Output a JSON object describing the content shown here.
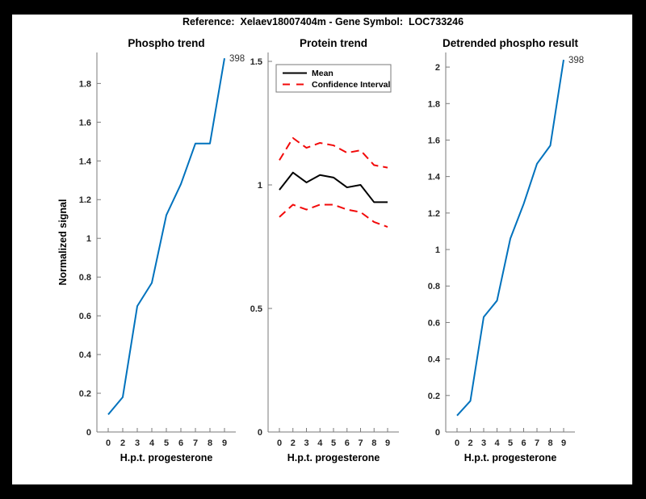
{
  "figure": {
    "title": "Reference:  Xelaev18007404m - Gene Symbol:  LOC733246",
    "background": "#000000",
    "canvas_color": "#ffffff"
  },
  "colors": {
    "line_blue": "#0072BD",
    "ci_red": "#f20a0a",
    "mean_black": "#000000",
    "axis_gray": "#7a7a7a",
    "tick_text": "#262626",
    "label_text": "#000000",
    "end_label_text": "#333333"
  },
  "chart_data": [
    {
      "type": "line",
      "title": "Phospho trend",
      "xlabel": "H.p.t. progesterone",
      "ylabel": "Normalized signal",
      "x_tick_labels": [
        "0",
        "2",
        "3",
        "4",
        "5",
        "6",
        "7",
        "8",
        "9"
      ],
      "y_ticks": [
        0,
        0.2,
        0.4,
        0.6,
        0.8,
        1,
        1.2,
        1.4,
        1.6,
        1.8
      ],
      "ylim": [
        0,
        1.96
      ],
      "grid": false,
      "legend": null,
      "series": [
        {
          "name": "398",
          "color_key": "line_blue",
          "style": "solid",
          "values": [
            0.09,
            0.18,
            0.65,
            0.77,
            1.12,
            1.28,
            1.49,
            1.49,
            1.93
          ],
          "end_label": "398"
        }
      ]
    },
    {
      "type": "line",
      "title": "Protein trend",
      "xlabel": "H.p.t. progesterone",
      "ylabel": "",
      "x_tick_labels": [
        "0",
        "2",
        "3",
        "4",
        "5",
        "6",
        "7",
        "8",
        "9"
      ],
      "y_ticks": [
        0,
        0.5,
        1,
        1.5
      ],
      "ylim": [
        0,
        1.536
      ],
      "grid": false,
      "legend": {
        "position": "north-inside",
        "entries": [
          {
            "label": "Mean",
            "color_key": "mean_black",
            "style": "solid"
          },
          {
            "label": "Confidence Interval",
            "color_key": "ci_red",
            "style": "dashed"
          }
        ]
      },
      "series": [
        {
          "name": "Mean",
          "color_key": "mean_black",
          "style": "solid",
          "values": [
            0.98,
            1.05,
            1.01,
            1.04,
            1.03,
            0.99,
            1.0,
            0.93,
            0.93
          ],
          "end_label": ""
        },
        {
          "name": "Confidence Interval upper",
          "color_key": "ci_red",
          "style": "dashed",
          "values": [
            1.1,
            1.19,
            1.15,
            1.17,
            1.16,
            1.13,
            1.14,
            1.08,
            1.07
          ],
          "end_label": ""
        },
        {
          "name": "Confidence Interval lower",
          "color_key": "ci_red",
          "style": "dashed",
          "values": [
            0.87,
            0.92,
            0.9,
            0.92,
            0.92,
            0.9,
            0.89,
            0.85,
            0.83
          ],
          "end_label": ""
        }
      ]
    },
    {
      "type": "line",
      "title": "Detrended phospho result",
      "xlabel": "H.p.t. progesterone",
      "ylabel": "",
      "x_tick_labels": [
        "0",
        "2",
        "3",
        "4",
        "5",
        "6",
        "7",
        "8",
        "9"
      ],
      "y_ticks": [
        0,
        0.2,
        0.4,
        0.6,
        0.8,
        1,
        1.2,
        1.4,
        1.6,
        1.8,
        2
      ],
      "ylim": [
        0,
        2.08
      ],
      "grid": false,
      "legend": null,
      "series": [
        {
          "name": "398",
          "color_key": "line_blue",
          "style": "solid",
          "values": [
            0.09,
            0.17,
            0.63,
            0.72,
            1.06,
            1.25,
            1.47,
            1.57,
            2.04
          ],
          "end_label": "398"
        }
      ]
    }
  ]
}
